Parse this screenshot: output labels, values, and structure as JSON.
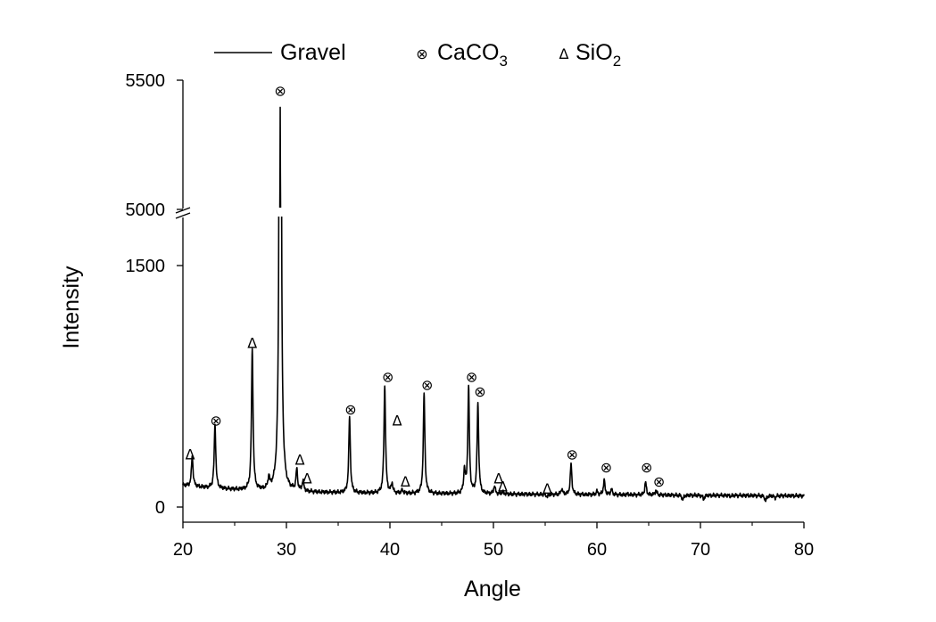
{
  "chart_data": {
    "type": "line",
    "title": "",
    "xlabel": "Angle",
    "ylabel": "Intensity",
    "xlim": [
      20,
      80
    ],
    "y_axis_break": {
      "lower_range": [
        0,
        1500
      ],
      "upper_range": [
        5000,
        5500
      ]
    },
    "x_ticks": [
      "20",
      "30",
      "40",
      "50",
      "60",
      "70",
      "80"
    ],
    "y_ticks": [
      "0",
      "1500",
      "5000",
      "5500"
    ],
    "legend": {
      "position": "top",
      "entries": [
        {
          "marker": "line",
          "name": "Gravel"
        },
        {
          "marker": "⊗",
          "name": "CaCO",
          "subscript": "3"
        },
        {
          "marker": "Δ",
          "name": "SiO",
          "subscript": "2"
        }
      ]
    },
    "series": [
      {
        "name": "Gravel",
        "color": "#000000",
        "background": 90,
        "peaks": [
          {
            "x": 20.9,
            "y": 280
          },
          {
            "x": 23.1,
            "y": 490
          },
          {
            "x": 26.7,
            "y": 965
          },
          {
            "x": 28.3,
            "y": 160
          },
          {
            "x": 29.4,
            "y": 5380
          },
          {
            "x": 31.0,
            "y": 220
          },
          {
            "x": 31.6,
            "y": 155
          },
          {
            "x": 36.1,
            "y": 560
          },
          {
            "x": 39.5,
            "y": 760
          },
          {
            "x": 40.2,
            "y": 150
          },
          {
            "x": 41.2,
            "y": 110
          },
          {
            "x": 43.3,
            "y": 710
          },
          {
            "x": 47.2,
            "y": 230
          },
          {
            "x": 47.6,
            "y": 745
          },
          {
            "x": 48.5,
            "y": 650
          },
          {
            "x": 50.1,
            "y": 140
          },
          {
            "x": 50.9,
            "y": 105
          },
          {
            "x": 55.2,
            "y": 75
          },
          {
            "x": 56.6,
            "y": 125
          },
          {
            "x": 57.5,
            "y": 280
          },
          {
            "x": 60.0,
            "y": 110
          },
          {
            "x": 60.7,
            "y": 180
          },
          {
            "x": 61.4,
            "y": 125
          },
          {
            "x": 63.0,
            "y": 95
          },
          {
            "x": 64.7,
            "y": 170
          },
          {
            "x": 65.7,
            "y": 120
          },
          {
            "x": 68.3,
            "y": 60
          },
          {
            "x": 70.3,
            "y": 65
          },
          {
            "x": 72.9,
            "y": 85
          },
          {
            "x": 76.3,
            "y": 55
          },
          {
            "x": 77.2,
            "y": 75
          }
        ]
      }
    ],
    "annotations": [
      {
        "symbol": "Δ",
        "phase": "SiO2",
        "x": 20.7,
        "y": 330
      },
      {
        "symbol": "⊗",
        "phase": "CaCO3",
        "x": 23.2,
        "y": 540
      },
      {
        "symbol": "Δ",
        "phase": "SiO2",
        "x": 26.7,
        "y": 1020
      },
      {
        "symbol": "⊗",
        "phase": "CaCO3",
        "x": 29.4,
        "y": 5460
      },
      {
        "symbol": "Δ",
        "phase": "SiO2",
        "x": 31.3,
        "y": 295
      },
      {
        "symbol": "Δ",
        "phase": "SiO2",
        "x": 32.0,
        "y": 180
      },
      {
        "symbol": "⊗",
        "phase": "CaCO3",
        "x": 36.2,
        "y": 610
      },
      {
        "symbol": "⊗",
        "phase": "CaCO3",
        "x": 39.8,
        "y": 810
      },
      {
        "symbol": "Δ",
        "phase": "SiO2",
        "x": 40.7,
        "y": 540
      },
      {
        "symbol": "Δ",
        "phase": "SiO2",
        "x": 41.5,
        "y": 160
      },
      {
        "symbol": "⊗",
        "phase": "CaCO3",
        "x": 43.6,
        "y": 760
      },
      {
        "symbol": "⊗",
        "phase": "CaCO3",
        "x": 47.9,
        "y": 810
      },
      {
        "symbol": "⊗",
        "phase": "CaCO3",
        "x": 48.7,
        "y": 720
      },
      {
        "symbol": "Δ",
        "phase": "SiO2",
        "x": 50.5,
        "y": 180
      },
      {
        "symbol": "Δ",
        "phase": "SiO2",
        "x": 50.9,
        "y": 130
      },
      {
        "symbol": "Δ",
        "phase": "SiO2",
        "x": 55.2,
        "y": 115
      },
      {
        "symbol": "⊗",
        "phase": "CaCO3",
        "x": 57.6,
        "y": 330
      },
      {
        "symbol": "⊗",
        "phase": "CaCO3",
        "x": 60.9,
        "y": 250
      },
      {
        "symbol": "⊗",
        "phase": "CaCO3",
        "x": 64.8,
        "y": 250
      },
      {
        "symbol": "⊗",
        "phase": "CaCO3",
        "x": 66.0,
        "y": 160
      }
    ]
  }
}
